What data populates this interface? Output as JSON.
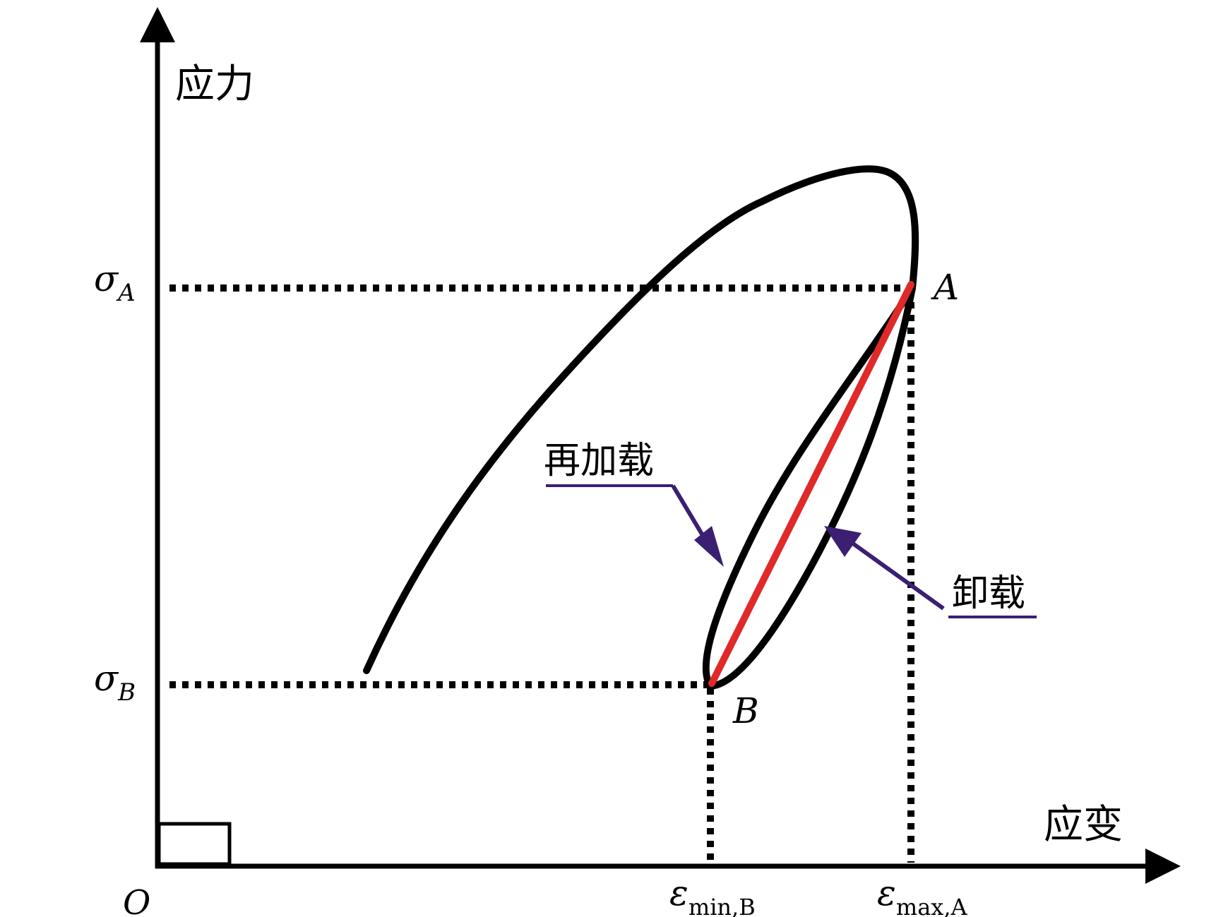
{
  "axes": {
    "y_label": "应力",
    "x_label": "应变",
    "origin_label": "O"
  },
  "stress_ticks": {
    "sigma_a": {
      "symbol": "σ",
      "sub": "A"
    },
    "sigma_b": {
      "symbol": "σ",
      "sub": "B"
    }
  },
  "strain_ticks": {
    "eps_min_b": {
      "symbol": "ε",
      "sub": "min,B"
    },
    "eps_max_a": {
      "symbol": "ε",
      "sub": "max,A"
    }
  },
  "points": {
    "a": "A",
    "b": "B"
  },
  "annotations": {
    "reloading": "再加载",
    "unloading": "卸载"
  },
  "colors": {
    "curve": "#000000",
    "chord": "#e02a2a",
    "arrow": "#3a1f73",
    "underline": "#3a1f73",
    "guides": "#000000"
  }
}
